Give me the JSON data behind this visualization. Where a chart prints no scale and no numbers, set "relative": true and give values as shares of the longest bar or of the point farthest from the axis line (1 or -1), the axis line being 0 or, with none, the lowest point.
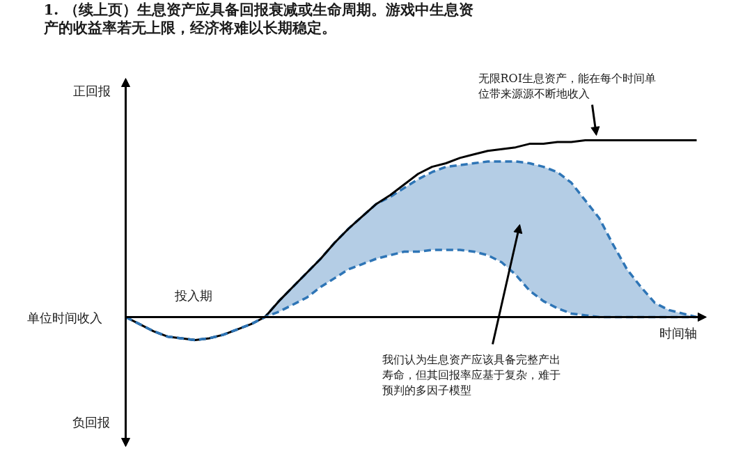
{
  "chart_data": {
    "type": "line",
    "relative": true,
    "title": "1. （续上页）生息资产应具备回报衰减或生命周期。游戏中生息资产的收益率若无上限，经济将难以长期稳定。",
    "xlabel": "时间轴",
    "ylabel": "单位时间收入",
    "annotations": [
      "正回报",
      "负回报",
      "投入期",
      "无限ROI生息资产，能在每个时间单位带来源源不断地收入",
      "我们认为生息资产应该具备完整产出寿命，但其回报率应基于复杂，难于预判的多因子模型"
    ],
    "categories": [
      null,
      null,
      null,
      null,
      null,
      null,
      null,
      null,
      null,
      null,
      null,
      null,
      null,
      null,
      null,
      null,
      null,
      null,
      null,
      null,
      null,
      null,
      null,
      null,
      null,
      null,
      null,
      null,
      null,
      null,
      null,
      null,
      null,
      null,
      null,
      null,
      null,
      null,
      null,
      null,
      null,
      null
    ],
    "series": [
      {
        "color": "#000000",
        "values": [
          0,
          -0.04,
          -0.08,
          -0.11,
          -0.12,
          -0.13,
          -0.12,
          -0.1,
          -0.07,
          -0.04,
          0,
          0.09,
          0.17,
          0.25,
          0.33,
          0.42,
          0.5,
          0.57,
          0.64,
          0.69,
          0.75,
          0.81,
          0.85,
          0.87,
          0.9,
          0.92,
          0.94,
          0.95,
          0.96,
          0.98,
          0.98,
          0.99,
          0.99,
          1,
          1,
          1,
          1,
          1,
          1,
          1,
          1,
          1
        ]
      },
      {
        "color": "#2e75b6",
        "line_style": "dashed",
        "values": [
          0,
          -0.04,
          -0.08,
          -0.11,
          -0.12,
          -0.13,
          -0.12,
          -0.1,
          -0.07,
          -0.04,
          0,
          0.09,
          0.17,
          0.25,
          0.33,
          0.42,
          0.5,
          0.57,
          0.64,
          0.68,
          0.73,
          0.78,
          0.82,
          0.85,
          0.86,
          0.87,
          0.88,
          0.88,
          0.88,
          0.87,
          0.85,
          0.82,
          0.76,
          0.66,
          0.56,
          0.41,
          0.27,
          0.17,
          0.08,
          0.04,
          0.02,
          0
        ],
        "upper": [
          0,
          -0.04,
          -0.08,
          -0.11,
          -0.12,
          -0.13,
          -0.12,
          -0.1,
          -0.07,
          -0.04,
          0,
          0.09,
          0.17,
          0.25,
          0.33,
          0.42,
          0.5,
          0.57,
          0.64,
          0.68,
          0.73,
          0.78,
          0.82,
          0.85,
          0.86,
          0.87,
          0.88,
          0.88,
          0.88,
          0.87,
          0.85,
          0.82,
          0.76,
          0.66,
          0.56,
          0.41,
          0.27,
          0.17,
          0.08,
          0.04,
          0.02,
          0
        ],
        "lower": [
          0,
          -0.04,
          -0.08,
          -0.11,
          -0.12,
          -0.13,
          -0.12,
          -0.1,
          -0.07,
          -0.04,
          0,
          0.03,
          0.07,
          0.11,
          0.17,
          0.22,
          0.27,
          0.3,
          0.33,
          0.35,
          0.37,
          0.37,
          0.38,
          0.38,
          0.38,
          0.37,
          0.35,
          0.31,
          0.24,
          0.15,
          0.09,
          0.05,
          0.02,
          0.01,
          0,
          0,
          0,
          0,
          0,
          0,
          0,
          0
        ]
      },
      {
        "color": "#2e75b6",
        "line_style": "dashed",
        "values": [
          0,
          -0.04,
          -0.08,
          -0.11,
          -0.12,
          -0.13,
          -0.12,
          -0.1,
          -0.07,
          -0.04,
          0,
          0.03,
          0.07,
          0.11,
          0.17,
          0.22,
          0.27,
          0.3,
          0.33,
          0.35,
          0.37,
          0.37,
          0.38,
          0.38,
          0.38,
          0.37,
          0.35,
          0.31,
          0.24,
          0.15,
          0.09,
          0.05,
          0.02,
          0.01,
          0,
          0,
          0,
          0,
          0,
          0,
          0,
          0
        ]
      }
    ]
  }
}
